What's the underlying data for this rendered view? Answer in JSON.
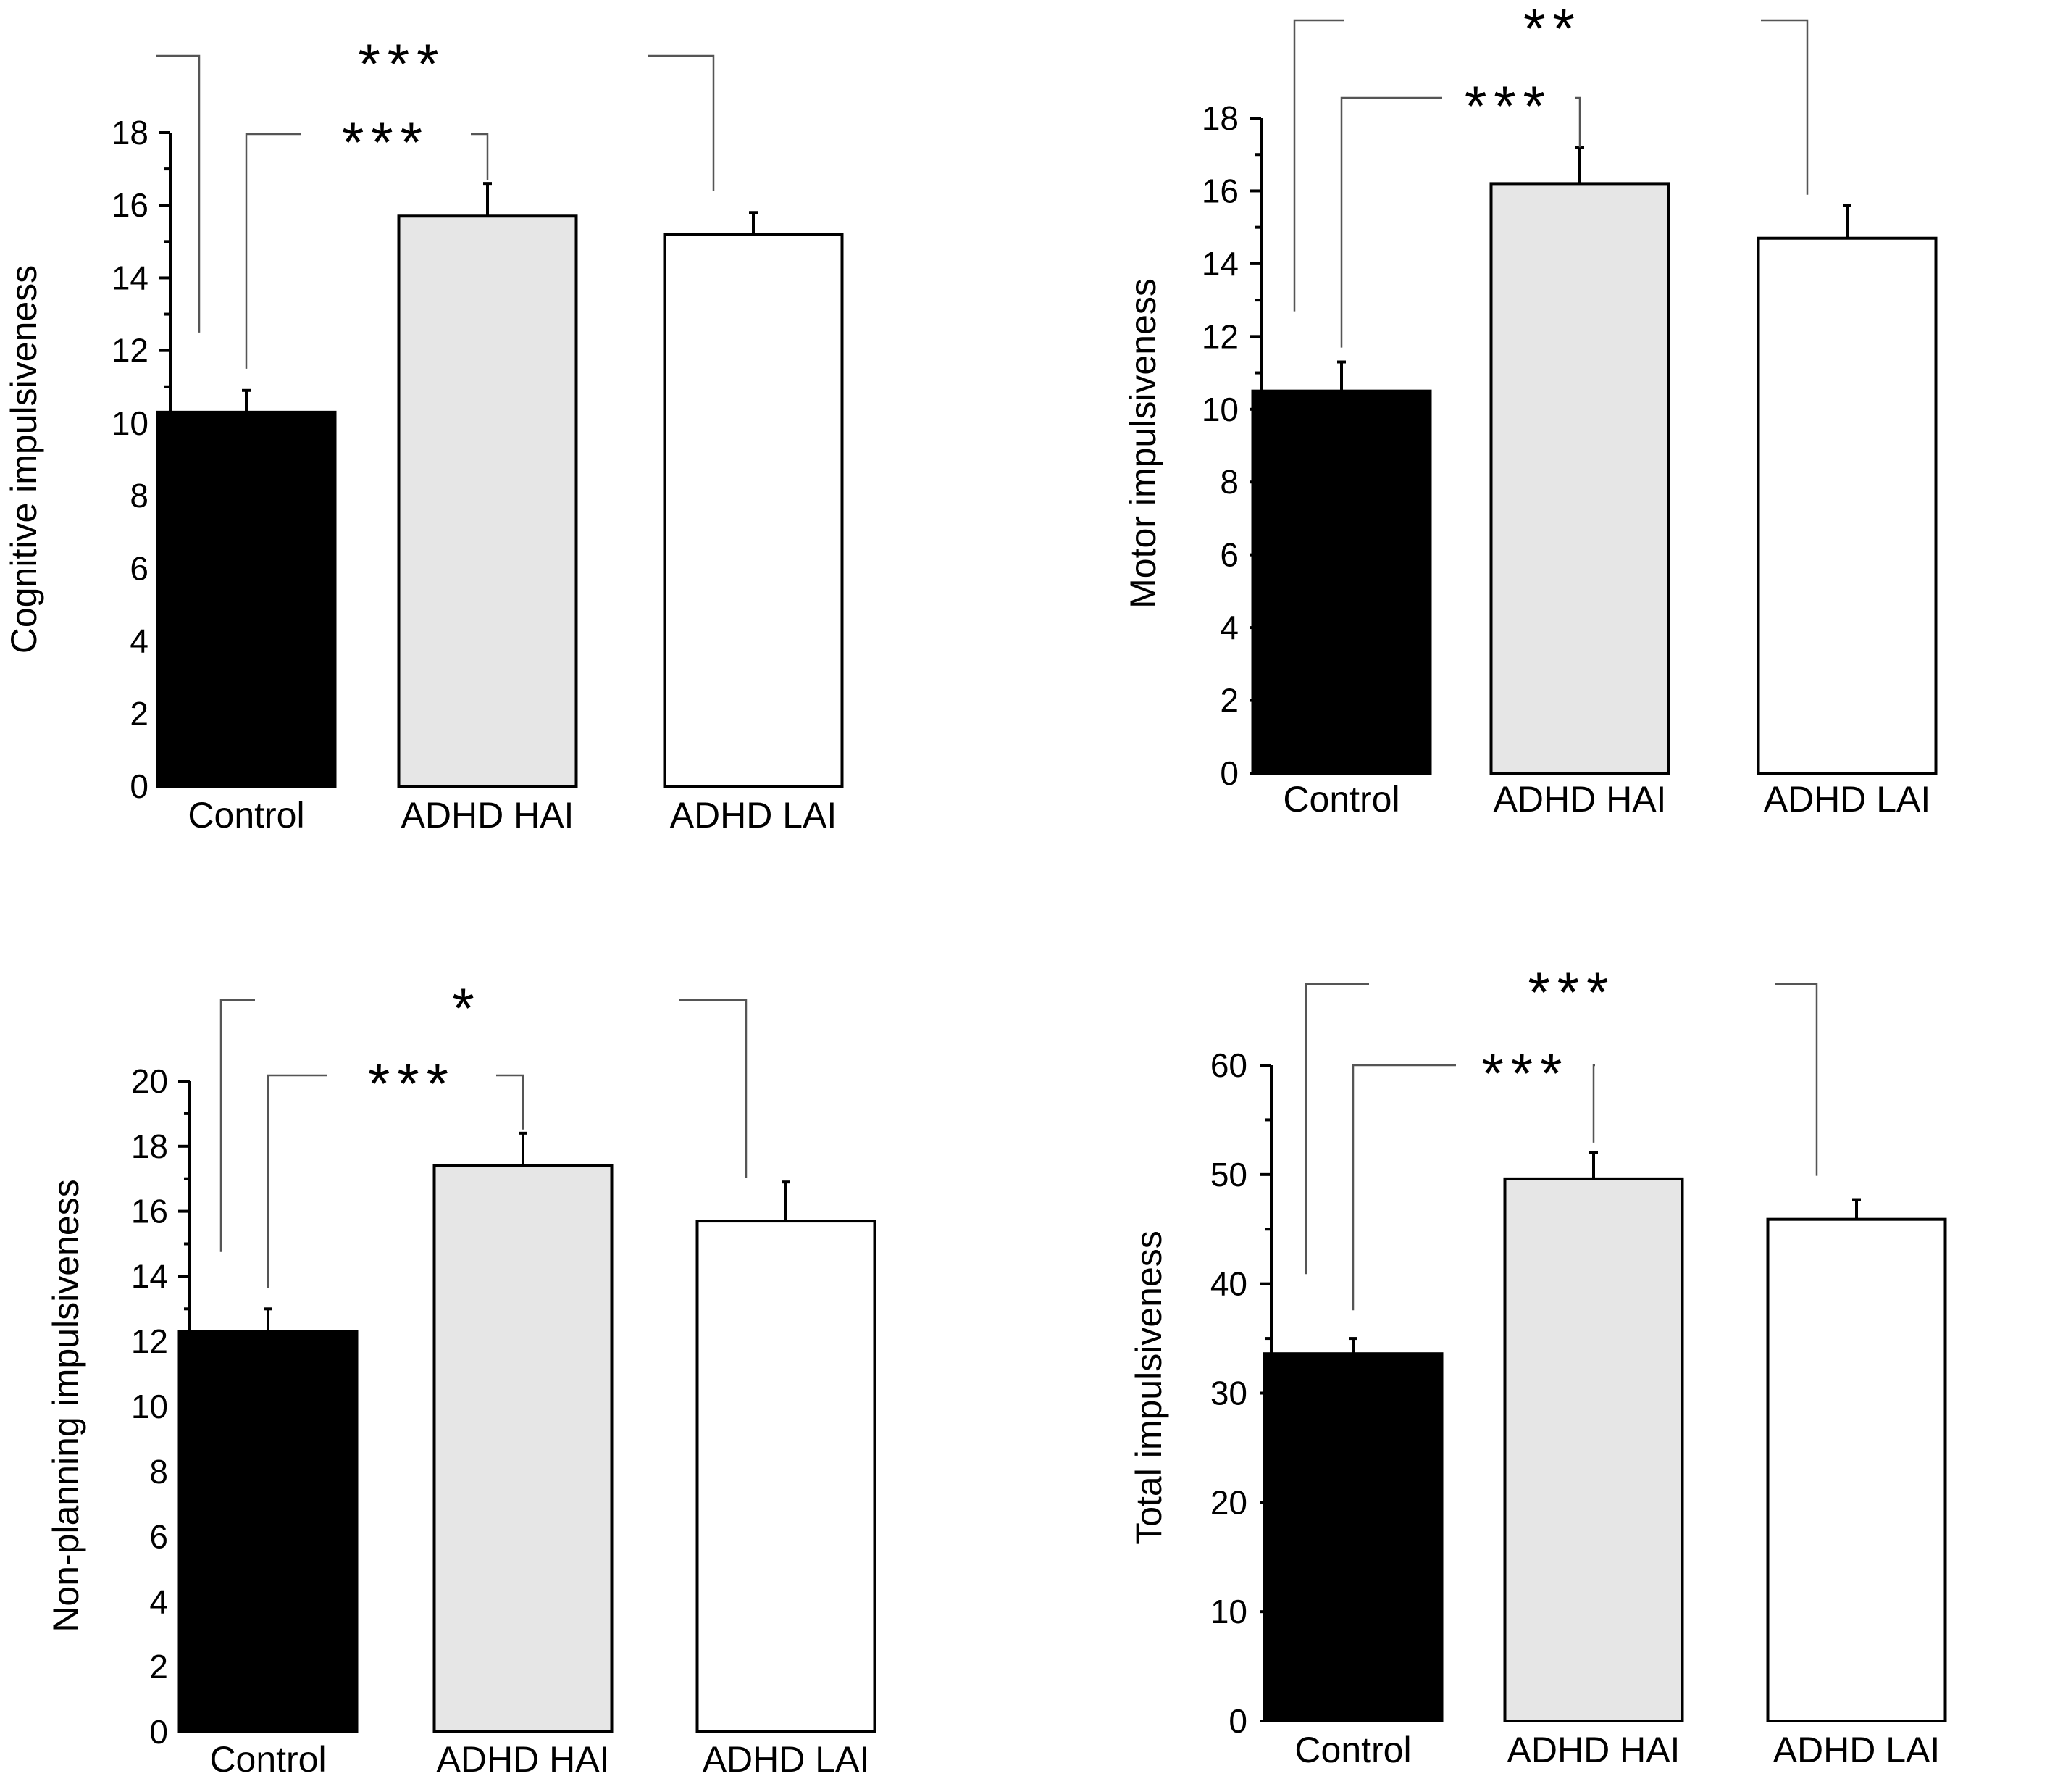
{
  "chart_data": [
    {
      "type": "bar",
      "title": "",
      "xlabel": "",
      "ylabel": "Cognitive impulsiveness",
      "ylim": [
        0,
        18
      ],
      "yticks": [
        0,
        2,
        4,
        6,
        8,
        10,
        12,
        14,
        16,
        18
      ],
      "categories": [
        "Control",
        "ADHD HAI",
        "ADHD LAI"
      ],
      "values": [
        10.3,
        15.7,
        15.2
      ],
      "errors": [
        0.6,
        0.9,
        0.6
      ],
      "colors": [
        "#000000",
        "#e6e6e6",
        "#ffffff"
      ],
      "grid": false,
      "significance": [
        {
          "from": 0,
          "to": 1,
          "label": "***"
        },
        {
          "from": 0,
          "to": 2,
          "label": "***"
        }
      ]
    },
    {
      "type": "bar",
      "title": "",
      "xlabel": "",
      "ylabel": "Motor impulsiveness",
      "ylim": [
        0,
        18
      ],
      "yticks": [
        0,
        2,
        4,
        6,
        8,
        10,
        12,
        14,
        16,
        18
      ],
      "categories": [
        "Control",
        "ADHD HAI",
        "ADHD LAI"
      ],
      "values": [
        10.5,
        16.2,
        14.7
      ],
      "errors": [
        0.8,
        1.0,
        0.9
      ],
      "colors": [
        "#000000",
        "#e6e6e6",
        "#ffffff"
      ],
      "grid": false,
      "significance": [
        {
          "from": 0,
          "to": 1,
          "label": "***"
        },
        {
          "from": 0,
          "to": 2,
          "label": "**"
        }
      ]
    },
    {
      "type": "bar",
      "title": "",
      "xlabel": "",
      "ylabel": "Non-planning  impulsiveness",
      "ylim": [
        0,
        20
      ],
      "yticks": [
        0,
        2,
        4,
        6,
        8,
        10,
        12,
        14,
        16,
        18,
        20
      ],
      "categories": [
        "Control",
        "ADHD HAI",
        "ADHD LAI"
      ],
      "values": [
        12.3,
        17.4,
        15.7
      ],
      "errors": [
        0.7,
        1.0,
        1.2
      ],
      "colors": [
        "#000000",
        "#e6e6e6",
        "#ffffff"
      ],
      "grid": false,
      "significance": [
        {
          "from": 0,
          "to": 1,
          "label": "***"
        },
        {
          "from": 0,
          "to": 2,
          "label": "*"
        }
      ]
    },
    {
      "type": "bar",
      "title": "",
      "xlabel": "",
      "ylabel": "Total impulsiveness",
      "ylim": [
        0,
        60
      ],
      "yticks": [
        0,
        10,
        20,
        30,
        40,
        50,
        60
      ],
      "categories": [
        "Control",
        "ADHD HAI",
        "ADHD LAI"
      ],
      "values": [
        33.6,
        49.6,
        45.9
      ],
      "errors": [
        1.4,
        2.4,
        1.8
      ],
      "colors": [
        "#000000",
        "#e6e6e6",
        "#ffffff"
      ],
      "grid": false,
      "significance": [
        {
          "from": 0,
          "to": 1,
          "label": "***"
        },
        {
          "from": 0,
          "to": 2,
          "label": "***"
        }
      ]
    }
  ]
}
